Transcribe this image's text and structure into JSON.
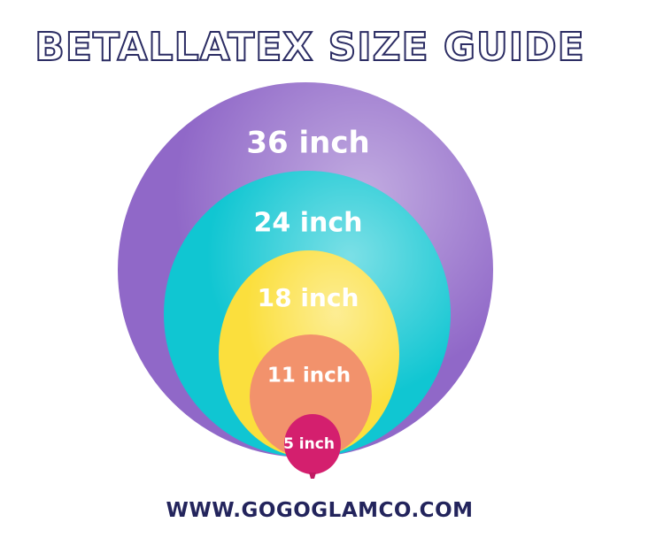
{
  "title": "BETALLATEX SIZE GUIDE",
  "balloons": [
    {
      "label": "36 inch",
      "color": "#9068c8"
    },
    {
      "label": "24 inch",
      "color": "#10c6d2"
    },
    {
      "label": "18 inch",
      "color": "#fbdf3d"
    },
    {
      "label": "11 inch",
      "color": "#f2926c"
    },
    {
      "label": "5 inch",
      "color": "#d41f6e"
    }
  ],
  "website": "WWW.GOGOGLAMCO.COM",
  "text_color": "#2b2c63"
}
